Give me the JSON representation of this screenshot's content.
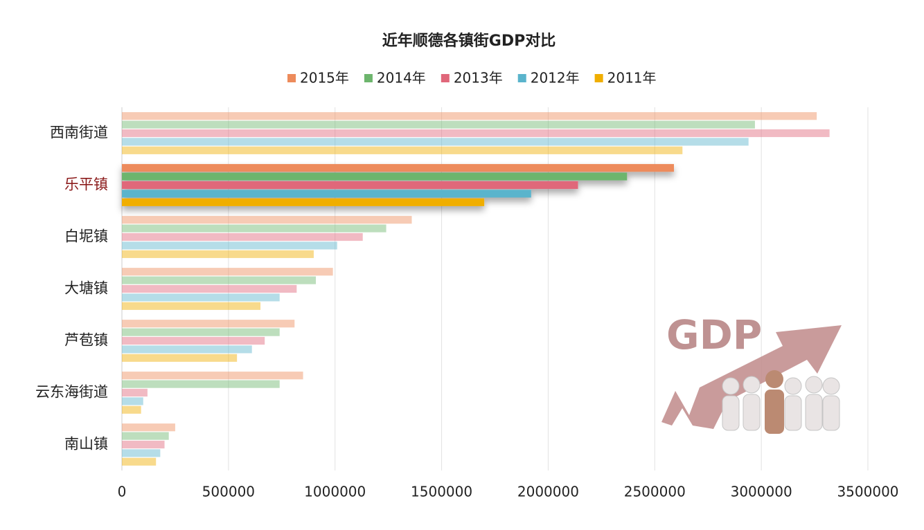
{
  "chart_data": {
    "type": "hbar",
    "title": "近年顺德各镇街GDP对比",
    "annotation": "GDP",
    "categories": [
      "西南街道",
      "乐平镇",
      "白坭镇",
      "大塘镇",
      "芦苞镇",
      "云东海街道",
      "南山镇"
    ],
    "highlight": "乐平镇",
    "highlight_color": "#8b1a1a",
    "series": [
      {
        "name": "2015年",
        "color": "#ed8b5b",
        "values": [
          3260000,
          2590000,
          1360000,
          990000,
          810000,
          850000,
          250000
        ]
      },
      {
        "name": "2014年",
        "color": "#6db56d",
        "values": [
          2970000,
          2370000,
          1240000,
          910000,
          740000,
          740000,
          220000
        ]
      },
      {
        "name": "2013年",
        "color": "#e0677a",
        "values": [
          3320000,
          2140000,
          1130000,
          820000,
          670000,
          120000,
          200000
        ]
      },
      {
        "name": "2012年",
        "color": "#5ab4cc",
        "values": [
          2940000,
          1920000,
          1010000,
          740000,
          610000,
          100000,
          180000
        ]
      },
      {
        "name": "2011年",
        "color": "#f0ae00",
        "values": [
          2630000,
          1700000,
          900000,
          650000,
          540000,
          90000,
          160000
        ]
      }
    ],
    "xlim": [
      0,
      3500000
    ],
    "xticks": [
      0,
      500000,
      1000000,
      1500000,
      2000000,
      2500000,
      3000000,
      3500000
    ],
    "grid": true,
    "legend": "top"
  }
}
